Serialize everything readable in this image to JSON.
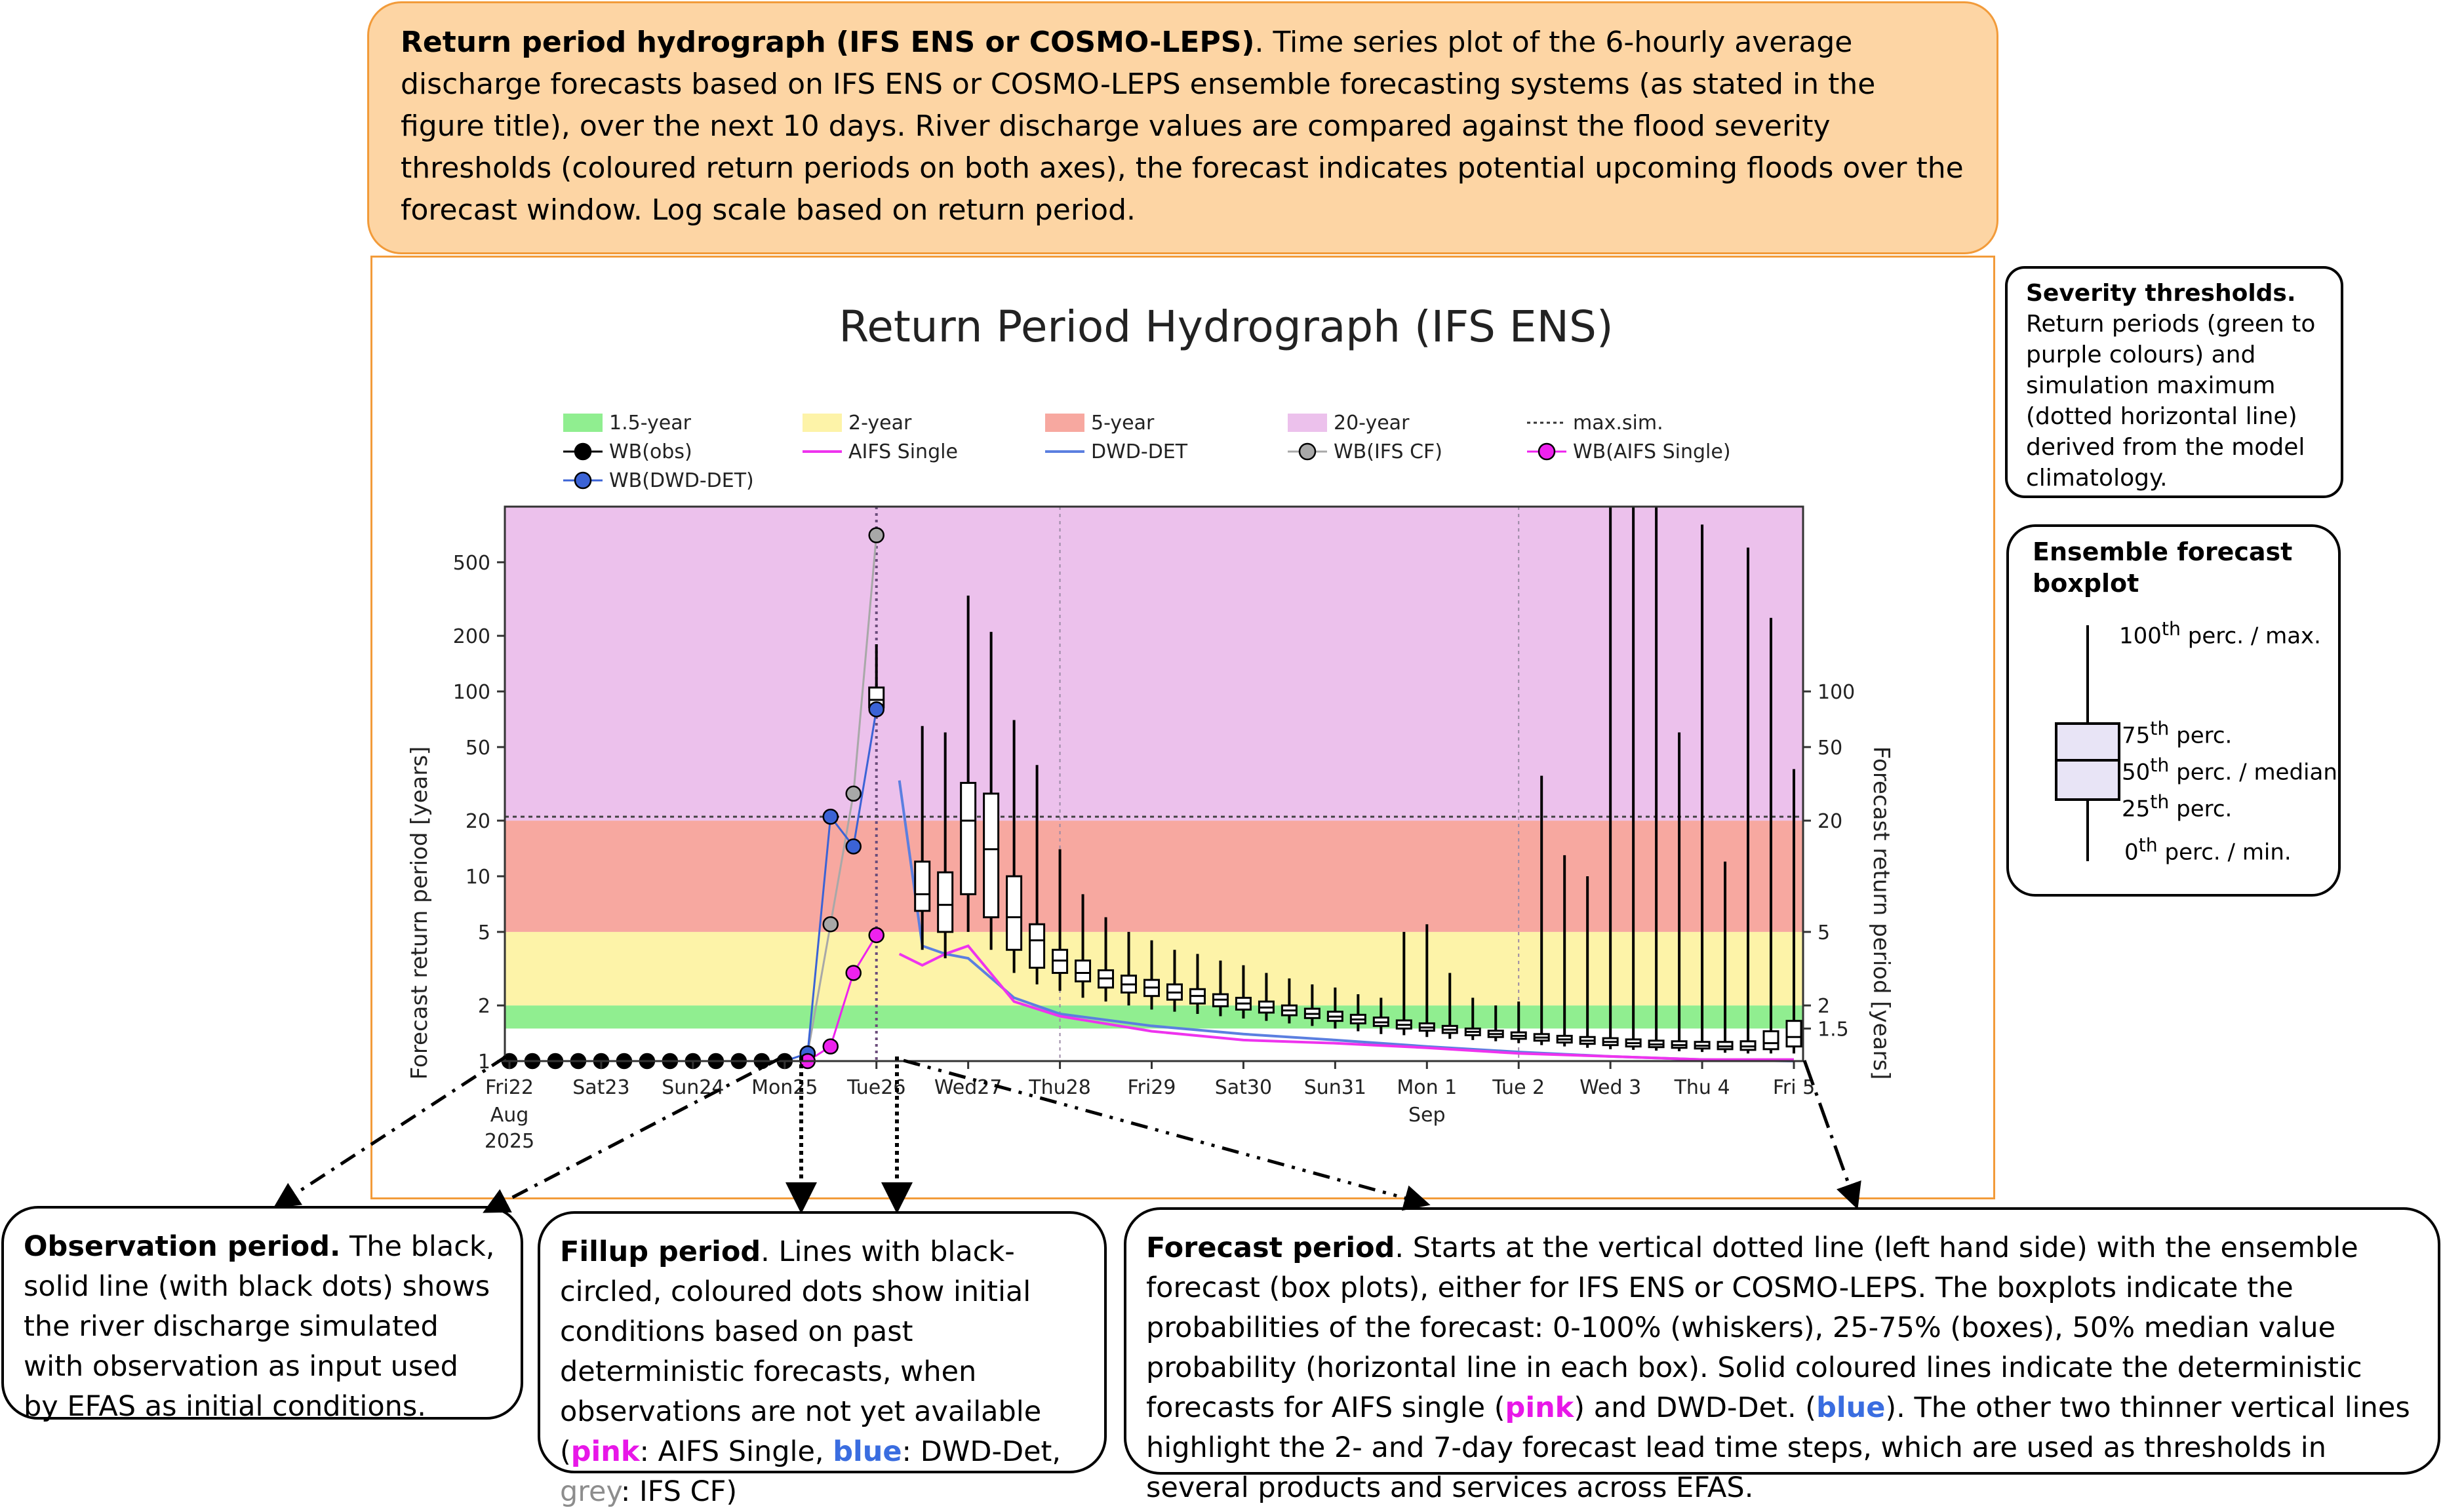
{
  "top_box": {
    "title": "Return period hydrograph (IFS ENS or COSMO-LEPS)",
    "text": ". Time series plot of the 6-hourly average discharge forecasts based on IFS ENS or COSMO-LEPS ensemble forecasting systems (as stated in the figure title), over the next 10 days. River discharge values are compared against the flood severity thresholds (coloured return periods on both axes), the forecast indicates potential upcoming floods over the forecast window. Log scale based on return period."
  },
  "severity_box": {
    "title": "Severity thresholds.",
    "text": "Return periods (green to purple colours) and simulation maximum (dotted horizontal line) derived from the model climatology."
  },
  "ensemble_box": {
    "title": "Ensemble forecast boxplot",
    "p100": "100",
    "p100_tail": " perc. / max.",
    "p75": "75",
    "p75_tail": " perc.",
    "p50": "50",
    "p50_tail": " perc. / median",
    "p25": "25",
    "p25_tail": " perc.",
    "p0": "0",
    "p0_tail": " perc. / min.",
    "sup": "th"
  },
  "obs_box": {
    "title": "Observation period.",
    "text": " The black, solid line (with black dots) shows the river discharge simulated with observation as input used by EFAS as initial conditions."
  },
  "fill_box": {
    "title": "Fillup period",
    "text1": ". Lines with black-circled, coloured dots show initial conditions based on past deterministic forecasts, when observations are not yet available (",
    "pink_label": "pink",
    "text2": ": AIFS Single, ",
    "blue_label": "blue",
    "text3": ": DWD-Det, ",
    "grey_label": "grey",
    "text4": ": IFS CF)"
  },
  "forecast_box": {
    "title": "Forecast period",
    "text1": ". Starts at the vertical dotted line (left hand side) with the ensemble forecast (box plots), either for IFS ENS or COSMO-LEPS. The boxplots indicate the probabilities of the forecast: 0-100% (whiskers), 25-75% (boxes), 50% median value probability (horizontal line in each box). Solid coloured lines indicate the deterministic forecasts for AIFS single (",
    "pink_label": "pink",
    "text2": ") and DWD-Det. (",
    "blue_label": "blue",
    "text3": "). The other two thinner vertical lines highlight the 2- and 7-day forecast lead time steps, which are used as thresholds in several products and services across EFAS."
  },
  "chart_data": {
    "type": "line",
    "title": "Return Period Hydrograph (IFS ENS)",
    "ylabel": "Forecast return period [years]",
    "ylabel_right": "Forecast return period [years]",
    "yscale": "log",
    "ylim": [
      1,
      1000
    ],
    "y_ticks": [
      1,
      2,
      5,
      10,
      20,
      50,
      100,
      200,
      500
    ],
    "y_ticks_right": [
      1.5,
      2,
      5,
      20,
      50,
      100
    ],
    "x_ticks": [
      {
        "day": 0,
        "label": "Fri22",
        "sub": [
          "Aug",
          "2025"
        ]
      },
      {
        "day": 1,
        "label": "Sat23"
      },
      {
        "day": 2,
        "label": "Sun24"
      },
      {
        "day": 3,
        "label": "Mon25"
      },
      {
        "day": 4,
        "label": "Tue26"
      },
      {
        "day": 5,
        "label": "Wed27"
      },
      {
        "day": 6,
        "label": "Thu28"
      },
      {
        "day": 7,
        "label": "Fri29"
      },
      {
        "day": 8,
        "label": "Sat30"
      },
      {
        "day": 9,
        "label": "Sun31"
      },
      {
        "day": 10,
        "label": "Mon 1",
        "sub": [
          "Sep"
        ]
      },
      {
        "day": 11,
        "label": "Tue 2"
      },
      {
        "day": 12,
        "label": "Wed 3"
      },
      {
        "day": 13,
        "label": "Thu 4"
      },
      {
        "day": 14,
        "label": "Fri 5"
      }
    ],
    "xlim_days": [
      -0.05,
      14.1
    ],
    "bands": [
      {
        "name": "1.5-year",
        "from": 1.5,
        "to": 2,
        "color": "#90ee90"
      },
      {
        "name": "2-year",
        "from": 2,
        "to": 5,
        "color": "#fdf3a8"
      },
      {
        "name": "5-year",
        "from": 5,
        "to": 20,
        "color": "#f7a8a0"
      },
      {
        "name": "20-year",
        "from": 20,
        "to": 1000,
        "color": "#ecc1ec"
      }
    ],
    "max_sim": 21,
    "forecast_start_day": 4.0,
    "lead_time_lines_days": [
      6.0,
      11.0
    ],
    "legend": [
      {
        "label": "1.5-year",
        "kind": "patch",
        "color": "#90ee90"
      },
      {
        "label": "2-year",
        "kind": "patch",
        "color": "#fdf3a8"
      },
      {
        "label": "5-year",
        "kind": "patch",
        "color": "#f7a8a0"
      },
      {
        "label": "20-year",
        "kind": "patch",
        "color": "#ecc1ec"
      },
      {
        "label": "max.sim.",
        "kind": "dotted",
        "color": "#333333"
      },
      {
        "label": "WB(obs)",
        "kind": "dotline",
        "color": "#000000"
      },
      {
        "label": "AIFS Single",
        "kind": "line",
        "color": "#ee33ee"
      },
      {
        "label": "DWD-DET",
        "kind": "line",
        "color": "#5b7fe0"
      },
      {
        "label": "WB(IFS CF)",
        "kind": "dotline",
        "color": "#a8a8a8"
      },
      {
        "label": "WB(AIFS Single)",
        "kind": "dotline",
        "color": "#ee22ee"
      },
      {
        "label": "WB(DWD-DET)",
        "kind": "dotline",
        "color": "#3b63d6"
      }
    ],
    "series": [
      {
        "name": "WB(obs)",
        "color": "#000000",
        "x": [
          0,
          0.25,
          0.5,
          0.75,
          1,
          1.25,
          1.5,
          1.75,
          2,
          2.25,
          2.5,
          2.75,
          3
        ],
        "y": [
          1,
          1,
          1,
          1,
          1,
          1,
          1,
          1,
          1,
          1,
          1,
          1,
          1
        ]
      },
      {
        "name": "WB(IFS CF)",
        "color": "#a8a8a8",
        "x": [
          3,
          3.25,
          3.5,
          3.75,
          4
        ],
        "y": [
          1,
          1.1,
          5.5,
          28,
          700
        ]
      },
      {
        "name": "WB(DWD-DET)",
        "color": "#3b63d6",
        "x": [
          3,
          3.25,
          3.5,
          3.75,
          4
        ],
        "y": [
          1,
          1.1,
          21,
          14.5,
          80
        ]
      },
      {
        "name": "WB(AIFS Single)",
        "color": "#ee22ee",
        "x": [
          3,
          3.25,
          3.5,
          3.75,
          4
        ],
        "y": [
          1,
          1,
          1.2,
          3,
          4.8
        ]
      },
      {
        "name": "DWD-DET",
        "color": "#5b7fe0",
        "x": [
          4.25,
          4.5,
          4.75,
          5,
          5.5,
          6,
          7,
          8,
          9,
          10,
          11,
          12,
          13,
          14
        ],
        "y": [
          33,
          4.2,
          3.8,
          3.6,
          2.2,
          1.8,
          1.55,
          1.4,
          1.3,
          1.2,
          1.12,
          1.06,
          1.02,
          1.0
        ]
      },
      {
        "name": "AIFS Single",
        "color": "#ee33ee",
        "x": [
          4.25,
          4.5,
          4.75,
          5,
          5.5,
          6,
          7,
          8,
          9,
          10,
          11,
          12,
          13,
          14
        ],
        "y": [
          3.8,
          3.3,
          3.8,
          4.2,
          2.1,
          1.75,
          1.45,
          1.3,
          1.25,
          1.18,
          1.1,
          1.06,
          1.02,
          1.02
        ]
      }
    ],
    "boxplots": [
      {
        "x": 4.0,
        "min": 80,
        "q1": 82,
        "med": 90,
        "q3": 105,
        "max": 180
      },
      {
        "x": 4.5,
        "min": 4,
        "q1": 6.5,
        "med": 8,
        "q3": 12,
        "max": 65
      },
      {
        "x": 4.75,
        "min": 3.6,
        "q1": 5,
        "med": 7,
        "q3": 10.5,
        "max": 60
      },
      {
        "x": 5.0,
        "min": 5,
        "q1": 8,
        "med": 20,
        "q3": 32,
        "max": 330
      },
      {
        "x": 5.25,
        "min": 4,
        "q1": 6,
        "med": 14,
        "q3": 28,
        "max": 210
      },
      {
        "x": 5.5,
        "min": 3,
        "q1": 4,
        "med": 6,
        "q3": 10,
        "max": 70
      },
      {
        "x": 5.75,
        "min": 2.6,
        "q1": 3.2,
        "med": 4.5,
        "q3": 5.5,
        "max": 40
      },
      {
        "x": 6.0,
        "min": 2.4,
        "q1": 3,
        "med": 3.5,
        "q3": 4,
        "max": 14
      },
      {
        "x": 6.25,
        "min": 2.2,
        "q1": 2.7,
        "med": 3,
        "q3": 3.5,
        "max": 8
      },
      {
        "x": 6.5,
        "min": 2.1,
        "q1": 2.5,
        "med": 2.8,
        "q3": 3.1,
        "max": 6
      },
      {
        "x": 6.75,
        "min": 2.0,
        "q1": 2.35,
        "med": 2.6,
        "q3": 2.9,
        "max": 5
      },
      {
        "x": 7.0,
        "min": 1.9,
        "q1": 2.25,
        "med": 2.5,
        "q3": 2.75,
        "max": 4.5
      },
      {
        "x": 7.25,
        "min": 1.85,
        "q1": 2.15,
        "med": 2.35,
        "q3": 2.6,
        "max": 4.0
      },
      {
        "x": 7.5,
        "min": 1.8,
        "q1": 2.05,
        "med": 2.25,
        "q3": 2.45,
        "max": 3.8
      },
      {
        "x": 7.75,
        "min": 1.75,
        "q1": 1.98,
        "med": 2.15,
        "q3": 2.3,
        "max": 3.5
      },
      {
        "x": 8.0,
        "min": 1.7,
        "q1": 1.9,
        "med": 2.05,
        "q3": 2.2,
        "max": 3.3
      },
      {
        "x": 8.25,
        "min": 1.65,
        "q1": 1.83,
        "med": 1.95,
        "q3": 2.1,
        "max": 3.0
      },
      {
        "x": 8.5,
        "min": 1.6,
        "q1": 1.77,
        "med": 1.88,
        "q3": 2.0,
        "max": 2.8
      },
      {
        "x": 8.75,
        "min": 1.55,
        "q1": 1.71,
        "med": 1.8,
        "q3": 1.92,
        "max": 2.6
      },
      {
        "x": 9.0,
        "min": 1.5,
        "q1": 1.65,
        "med": 1.74,
        "q3": 1.85,
        "max": 2.5
      },
      {
        "x": 9.25,
        "min": 1.45,
        "q1": 1.6,
        "med": 1.68,
        "q3": 1.78,
        "max": 2.3
      },
      {
        "x": 9.5,
        "min": 1.4,
        "q1": 1.55,
        "med": 1.62,
        "q3": 1.72,
        "max": 2.2
      },
      {
        "x": 9.75,
        "min": 1.38,
        "q1": 1.5,
        "med": 1.57,
        "q3": 1.66,
        "max": 5.0
      },
      {
        "x": 10.0,
        "min": 1.35,
        "q1": 1.46,
        "med": 1.52,
        "q3": 1.6,
        "max": 5.5
      },
      {
        "x": 10.25,
        "min": 1.32,
        "q1": 1.42,
        "med": 1.48,
        "q3": 1.55,
        "max": 3.0
      },
      {
        "x": 10.5,
        "min": 1.3,
        "q1": 1.38,
        "med": 1.44,
        "q3": 1.5,
        "max": 2.2
      },
      {
        "x": 10.75,
        "min": 1.28,
        "q1": 1.35,
        "med": 1.4,
        "q3": 1.46,
        "max": 2.0
      },
      {
        "x": 11.0,
        "min": 1.25,
        "q1": 1.32,
        "med": 1.37,
        "q3": 1.43,
        "max": 2.1
      },
      {
        "x": 11.25,
        "min": 1.22,
        "q1": 1.29,
        "med": 1.34,
        "q3": 1.4,
        "max": 35
      },
      {
        "x": 11.5,
        "min": 1.2,
        "q1": 1.26,
        "med": 1.31,
        "q3": 1.37,
        "max": 13
      },
      {
        "x": 11.75,
        "min": 1.18,
        "q1": 1.24,
        "med": 1.29,
        "q3": 1.35,
        "max": 10
      },
      {
        "x": 12.0,
        "min": 1.16,
        "q1": 1.22,
        "med": 1.27,
        "q3": 1.33,
        "max": 1000
      },
      {
        "x": 12.25,
        "min": 1.15,
        "q1": 1.2,
        "med": 1.25,
        "q3": 1.31,
        "max": 1000
      },
      {
        "x": 12.5,
        "min": 1.14,
        "q1": 1.19,
        "med": 1.23,
        "q3": 1.29,
        "max": 1000
      },
      {
        "x": 12.75,
        "min": 1.13,
        "q1": 1.18,
        "med": 1.22,
        "q3": 1.28,
        "max": 60
      },
      {
        "x": 13.0,
        "min": 1.12,
        "q1": 1.17,
        "med": 1.21,
        "q3": 1.27,
        "max": 800
      },
      {
        "x": 13.25,
        "min": 1.11,
        "q1": 1.16,
        "med": 1.2,
        "q3": 1.27,
        "max": 12
      },
      {
        "x": 13.5,
        "min": 1.1,
        "q1": 1.15,
        "med": 1.2,
        "q3": 1.28,
        "max": 600
      },
      {
        "x": 13.75,
        "min": 1.1,
        "q1": 1.16,
        "med": 1.25,
        "q3": 1.45,
        "max": 250
      },
      {
        "x": 14.0,
        "min": 1.1,
        "q1": 1.2,
        "med": 1.35,
        "q3": 1.65,
        "max": 38
      }
    ]
  }
}
